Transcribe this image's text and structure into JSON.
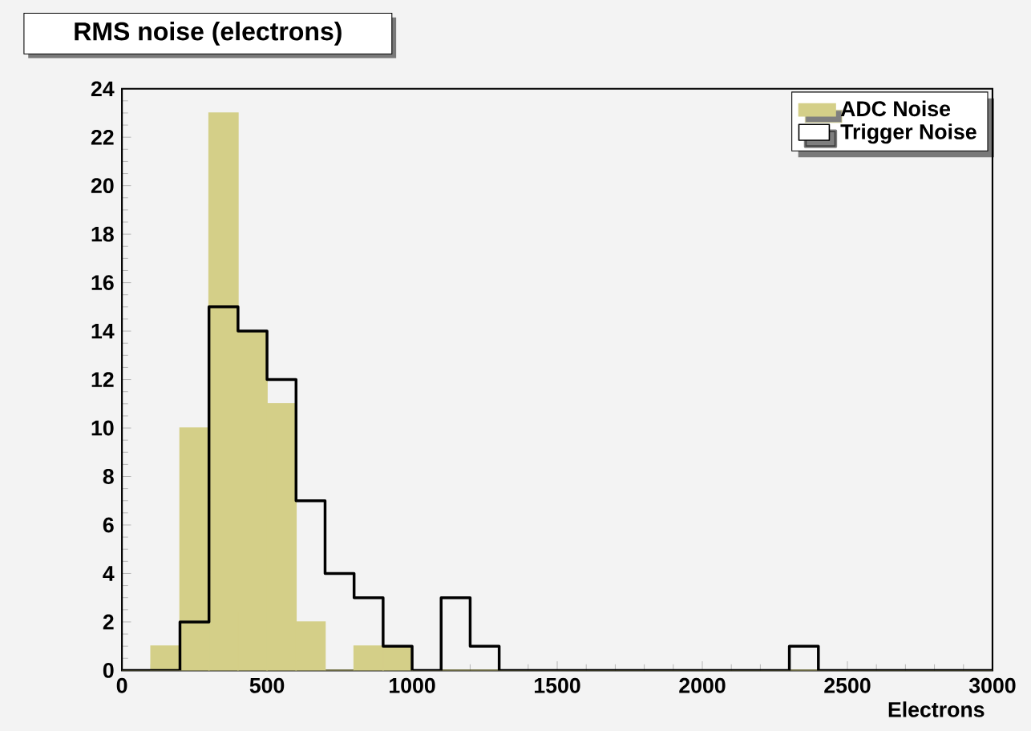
{
  "chart_data": {
    "type": "histogram",
    "title": "RMS noise (electrons)",
    "xlabel": "Electrons",
    "bins": [
      0,
      100,
      200,
      300,
      400,
      500,
      600,
      700,
      800,
      900,
      1000,
      1100,
      1200,
      1300,
      1400,
      1500,
      1600,
      1700,
      1800,
      1900,
      2000,
      2100,
      2200,
      2300,
      2400,
      2500,
      2600,
      2700,
      2800,
      2900,
      3000
    ],
    "series": [
      {
        "name": "ADC Noise",
        "color": "#d4cf88",
        "values": [
          0,
          1,
          10,
          23,
          14,
          11,
          2,
          0,
          1,
          1,
          0,
          0,
          0,
          0,
          0,
          0,
          0,
          0,
          0,
          0,
          0,
          0,
          0,
          0,
          0,
          0,
          0,
          0,
          0,
          0
        ]
      },
      {
        "name": "Trigger Noise",
        "color": "#000000",
        "values": [
          0,
          0,
          2,
          15,
          14,
          12,
          7,
          4,
          3,
          1,
          0,
          3,
          1,
          0,
          0,
          0,
          0,
          0,
          0,
          0,
          0,
          0,
          0,
          1,
          0,
          0,
          0,
          0,
          0,
          0
        ]
      }
    ],
    "xlim": [
      0,
      3000
    ],
    "ylim": [
      0,
      24
    ],
    "xticks": [
      0,
      500,
      1000,
      1500,
      2000,
      2500,
      3000
    ],
    "yticks": [
      0,
      2,
      4,
      6,
      8,
      10,
      12,
      14,
      16,
      18,
      20,
      22,
      24
    ],
    "legend": "top right",
    "grid": false
  }
}
